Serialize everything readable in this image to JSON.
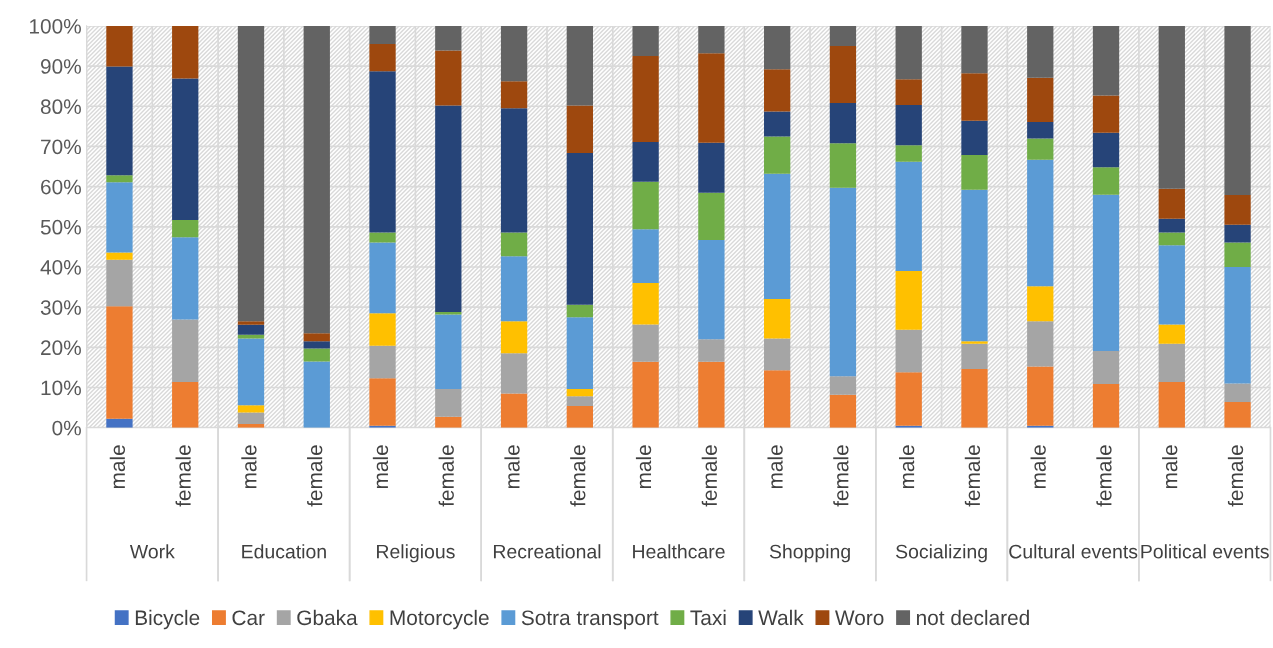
{
  "chart_data": {
    "type": "bar",
    "stacked": true,
    "categories": [
      "male",
      "female",
      "male",
      "female",
      "male",
      "female",
      "male",
      "female",
      "male",
      "female",
      "male",
      "female",
      "male",
      "female",
      "male",
      "female",
      "male",
      "female"
    ],
    "annotations": [
      "Work",
      "Education",
      "Religious",
      "Recreational",
      "Healthcare",
      "Shopping",
      "Socializing",
      "Cultural events",
      "Political events"
    ],
    "ylim": [
      0,
      100
    ],
    "yticks": [
      {
        "value": 0,
        "label": "0%"
      },
      {
        "value": 10,
        "label": "10%"
      },
      {
        "value": 20,
        "label": "20%"
      },
      {
        "value": 30,
        "label": "30%"
      },
      {
        "value": 40,
        "label": "40%"
      },
      {
        "value": 50,
        "label": "50%"
      },
      {
        "value": 60,
        "label": "60%"
      },
      {
        "value": 70,
        "label": "70%"
      },
      {
        "value": 80,
        "label": "80%"
      },
      {
        "value": 90,
        "label": "90%"
      },
      {
        "value": 100,
        "label": "100%"
      }
    ],
    "grid": true,
    "legend": "bottom",
    "series": [
      {
        "name": "Bicycle",
        "color": "#4472c4",
        "values": [
          2.2,
          0,
          0,
          0,
          0.5,
          0,
          0,
          0,
          0,
          0,
          0,
          0,
          0.5,
          0,
          0.5,
          0,
          0,
          0
        ]
      },
      {
        "name": "Car",
        "color": "#ed7d31",
        "values": [
          28.0,
          11.4,
          0.9,
          0,
          11.8,
          2.7,
          8.5,
          5.4,
          16.4,
          16.4,
          14.3,
          8.2,
          13.3,
          14.6,
          14.7,
          10.9,
          11.4,
          6.4
        ]
      },
      {
        "name": "Gbaka",
        "color": "#a5a5a5",
        "values": [
          11.6,
          15.5,
          2.9,
          0,
          8.1,
          6.9,
          10.0,
          2.4,
          9.3,
          5.6,
          7.9,
          4.6,
          10.6,
          6.3,
          11.3,
          8.2,
          9.5,
          4.6
        ]
      },
      {
        "name": "Motorcycle",
        "color": "#ffc000",
        "values": [
          1.8,
          0,
          1.8,
          0,
          8.1,
          0,
          8.0,
          1.8,
          10.3,
          0,
          9.8,
          0,
          14.6,
          0.6,
          8.7,
          0,
          4.8,
          0
        ]
      },
      {
        "name": "Sotra transport",
        "color": "#5b9bd5",
        "values": [
          17.5,
          20.5,
          16.6,
          16.5,
          17.6,
          18.6,
          16.2,
          17.9,
          13.4,
          24.7,
          31.2,
          46.9,
          27.2,
          37.7,
          31.5,
          38.9,
          19.7,
          29.0
        ]
      },
      {
        "name": "Taxi",
        "color": "#70ad47",
        "values": [
          1.7,
          4.3,
          0.9,
          3.2,
          2.5,
          0.6,
          5.9,
          3.1,
          11.8,
          11.8,
          9.3,
          11.1,
          4.1,
          8.7,
          5.3,
          6.8,
          3.2,
          6.1
        ]
      },
      {
        "name": "Walk",
        "color": "#264478",
        "values": [
          27.1,
          35.2,
          2.5,
          1.8,
          40.1,
          51.4,
          30.9,
          37.8,
          9.9,
          12.4,
          6.2,
          10.0,
          10.0,
          8.5,
          4.1,
          8.6,
          3.4,
          4.4
        ]
      },
      {
        "name": "Woro",
        "color": "#9e480e",
        "values": [
          10.1,
          13.1,
          0.9,
          2.0,
          6.8,
          13.7,
          6.7,
          11.8,
          21.4,
          22.3,
          10.5,
          14.2,
          6.4,
          11.8,
          11.0,
          9.3,
          7.5,
          7.4
        ]
      },
      {
        "name": "not declared",
        "color": "#636363",
        "values": [
          0,
          0,
          73.5,
          76.5,
          4.5,
          6.1,
          13.8,
          19.8,
          7.5,
          6.8,
          10.8,
          5.0,
          13.3,
          11.8,
          12.9,
          17.3,
          40.5,
          42.1
        ]
      }
    ]
  }
}
